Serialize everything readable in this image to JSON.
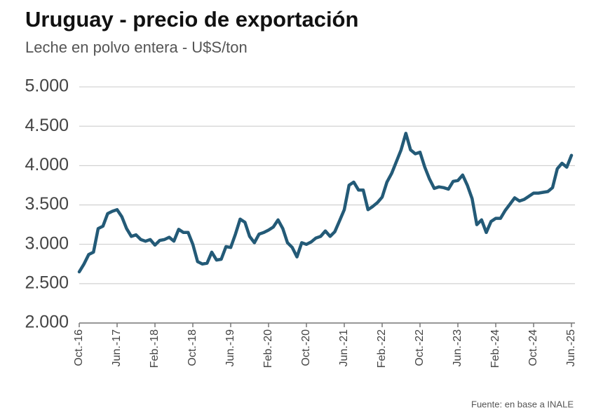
{
  "chart_data": {
    "type": "line",
    "title": "Uruguay - precio de exportación",
    "subtitle": "Leche en polvo entera - U$S/ton",
    "source": "Fuente: en base a INALE",
    "categories": [
      "Oct.-16",
      null,
      null,
      null,
      null,
      null,
      null,
      null,
      "Jun.-17",
      null,
      null,
      null,
      null,
      null,
      null,
      null,
      "Feb.-18",
      null,
      null,
      null,
      null,
      null,
      null,
      null,
      "Oct.-18",
      null,
      null,
      null,
      null,
      null,
      null,
      null,
      "Jun.-19",
      null,
      null,
      null,
      null,
      null,
      null,
      null,
      "Feb.-20",
      null,
      null,
      null,
      null,
      null,
      null,
      null,
      "Oct.-20",
      null,
      null,
      null,
      null,
      null,
      null,
      null,
      "Jun.-21",
      null,
      null,
      null,
      null,
      null,
      null,
      null,
      "Feb.-22",
      null,
      null,
      null,
      null,
      null,
      null,
      null,
      "Oct.-22",
      null,
      null,
      null,
      null,
      null,
      null,
      null,
      "Jun.-23",
      null,
      null,
      null,
      null,
      null,
      null,
      null,
      "Feb.-24",
      null,
      null,
      null,
      null,
      null,
      null,
      null,
      "Oct.-24",
      null,
      null,
      null,
      null,
      null,
      null,
      null,
      "Jun.-25"
    ],
    "values": [
      2650,
      2750,
      2870,
      2900,
      3200,
      3230,
      3390,
      3420,
      3440,
      3350,
      3200,
      3100,
      3120,
      3060,
      3040,
      3060,
      2990,
      3050,
      3060,
      3090,
      3040,
      3190,
      3150,
      3150,
      3000,
      2780,
      2750,
      2760,
      2900,
      2800,
      2810,
      2970,
      2960,
      3130,
      3320,
      3280,
      3100,
      3020,
      3130,
      3150,
      3180,
      3220,
      3310,
      3200,
      3020,
      2960,
      2840,
      3020,
      3000,
      3030,
      3080,
      3100,
      3170,
      3100,
      3160,
      3300,
      3440,
      3750,
      3790,
      3690,
      3690,
      3440,
      3480,
      3530,
      3600,
      3790,
      3900,
      4050,
      4200,
      4410,
      4200,
      4150,
      4170,
      3980,
      3830,
      3710,
      3730,
      3720,
      3700,
      3800,
      3810,
      3880,
      3750,
      3580,
      3250,
      3310,
      3150,
      3290,
      3330,
      3330,
      3430,
      3510,
      3590,
      3550,
      3570,
      3610,
      3650,
      3650,
      3660,
      3670,
      3720,
      3960,
      4030,
      3980,
      4130
    ],
    "color": "#235a77",
    "ylim": [
      2000,
      5000
    ],
    "yticks": [
      {
        "value": 2000,
        "label": "2.000"
      },
      {
        "value": 2500,
        "label": "2.500"
      },
      {
        "value": 3000,
        "label": "3.000"
      },
      {
        "value": 3500,
        "label": "3.500"
      },
      {
        "value": 4000,
        "label": "4.000"
      },
      {
        "value": 4500,
        "label": "4.500"
      },
      {
        "value": 5000,
        "label": "5.000"
      }
    ],
    "grid": true
  }
}
